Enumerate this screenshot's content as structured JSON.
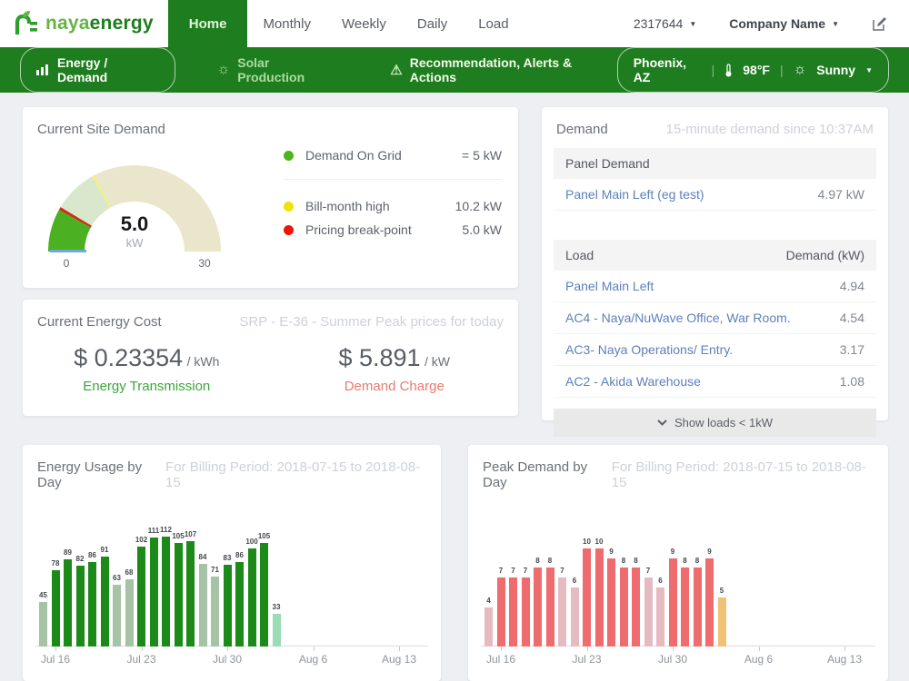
{
  "navbar": {
    "logo_light": "naya",
    "logo_dark": "energy",
    "tabs": [
      {
        "label": "Home",
        "active": true
      },
      {
        "label": "Monthly",
        "active": false
      },
      {
        "label": "Weekly",
        "active": false
      },
      {
        "label": "Daily",
        "active": false
      },
      {
        "label": "Load",
        "active": false
      }
    ],
    "account_id": "2317644",
    "company": "Company Name"
  },
  "subnav": {
    "energy_demand_label": "Energy / Demand",
    "solar_label": "Solar Production",
    "recommendation_label": "Recommendation, Alerts & Actions",
    "location": "Phoenix, AZ",
    "temperature": "98°F",
    "weather": "Sunny"
  },
  "site_demand": {
    "title": "Current Site Demand",
    "gauge": {
      "value_display": "5.0",
      "unit": "kW",
      "min_label": "0",
      "max_label": "30",
      "value_num": 5,
      "high_num": 10.2,
      "max_num": 30,
      "colors": {
        "current": "#4cb122",
        "below_high": "#d9e8cd",
        "above_high": "#e9e6cb",
        "break_line": "#d8281c",
        "high_line": "#f2ef8e",
        "baseline": "#6fa8dc"
      }
    },
    "legend": [
      {
        "label": "Demand On Grid",
        "value": "= 5 kW",
        "color": "#4db41e"
      },
      {
        "label": "Bill-month high",
        "value": "10.2 kW",
        "color": "#f3e203"
      },
      {
        "label": "Pricing break-point",
        "value": "5.0 kW",
        "color": "#ee1607"
      }
    ]
  },
  "energy_cost": {
    "title": "Current Energy Cost",
    "subtitle": "SRP - E-36 - Summer Peak prices for today",
    "items": [
      {
        "amount": "$ 0.23354",
        "unit": "/ kWh",
        "label": "Energy Transmission",
        "color": "#3ca53c"
      },
      {
        "amount": "$ 5.891",
        "unit": "/ kW",
        "label": "Demand Charge",
        "color": "#e87b6f"
      }
    ]
  },
  "demand_panel": {
    "title": "Demand",
    "subtitle": "15-minute demand since 10:37AM",
    "panel_header": "Panel Demand",
    "panel_rows": [
      {
        "name": "Panel Main Left (eg test)",
        "value": "4.97 kW"
      }
    ],
    "load_col": "Load",
    "demand_col": "Demand (kW)",
    "load_rows": [
      {
        "name": "Panel Main Left",
        "value": "4.94"
      },
      {
        "name": "AC4 - Naya/NuWave Office, War Room.",
        "value": "4.54"
      },
      {
        "name": "AC3- Naya Operations/ Entry.",
        "value": "3.17"
      },
      {
        "name": "AC2 - Akida Warehouse",
        "value": "1.08"
      }
    ],
    "show_loads_label": "Show loads < 1kW"
  },
  "chart_data": [
    {
      "type": "bar",
      "title": "Energy Usage by Day",
      "subtitle": "For Billing Period: 2018-07-15 to 2018-08-15",
      "values": [
        45,
        78,
        89,
        82,
        86,
        91,
        63,
        68,
        102,
        111,
        112,
        105,
        107,
        84,
        71,
        83,
        86,
        100,
        105,
        33
      ],
      "bar_styles": [
        "weekend",
        "weekday",
        "weekday",
        "weekday",
        "weekday",
        "weekday",
        "weekend",
        "weekend",
        "weekday",
        "weekday",
        "weekday",
        "weekday",
        "weekday",
        "weekend",
        "weekend",
        "weekday",
        "weekday",
        "weekday",
        "weekday",
        "partial"
      ],
      "palette": {
        "weekday": "#1c8a18",
        "weekend": "#a6c3a6",
        "partial": "#99dcb6"
      },
      "x_ticks": [
        {
          "label": "Jul 16",
          "bar_index": 1
        },
        {
          "label": "Jul 23",
          "bar_index": 8
        },
        {
          "label": "Jul 30",
          "bar_index": 15
        },
        {
          "label": "Aug 6",
          "bar_index": 22
        },
        {
          "label": "Aug 13",
          "bar_index": 29
        }
      ],
      "ylim": [
        0,
        120
      ],
      "grid": false,
      "legend_position": "none",
      "data_labels": true
    },
    {
      "type": "bar",
      "title": "Peak Demand by Day",
      "subtitle": "For Billing Period: 2018-07-15 to 2018-08-15",
      "values": [
        4,
        7,
        7,
        7,
        8,
        8,
        7,
        6,
        10,
        10,
        9,
        8,
        8,
        7,
        6,
        9,
        8,
        8,
        9,
        5
      ],
      "bar_styles": [
        "weekend",
        "weekday",
        "weekday",
        "weekday",
        "weekday",
        "weekday",
        "weekend",
        "weekend",
        "weekday",
        "weekday",
        "weekday",
        "weekday",
        "weekday",
        "weekend",
        "weekend",
        "weekday",
        "weekday",
        "weekday",
        "weekday",
        "partial"
      ],
      "palette": {
        "weekday": "#ee6b6e",
        "weekend": "#e5bac0",
        "partial": "#efc277"
      },
      "x_ticks": [
        {
          "label": "Jul 16",
          "bar_index": 1
        },
        {
          "label": "Jul 23",
          "bar_index": 8
        },
        {
          "label": "Jul 30",
          "bar_index": 15
        },
        {
          "label": "Aug 6",
          "bar_index": 22
        },
        {
          "label": "Aug 13",
          "bar_index": 29
        }
      ],
      "ylim": [
        0,
        12
      ],
      "grid": false,
      "legend_position": "none",
      "data_labels": true
    }
  ]
}
